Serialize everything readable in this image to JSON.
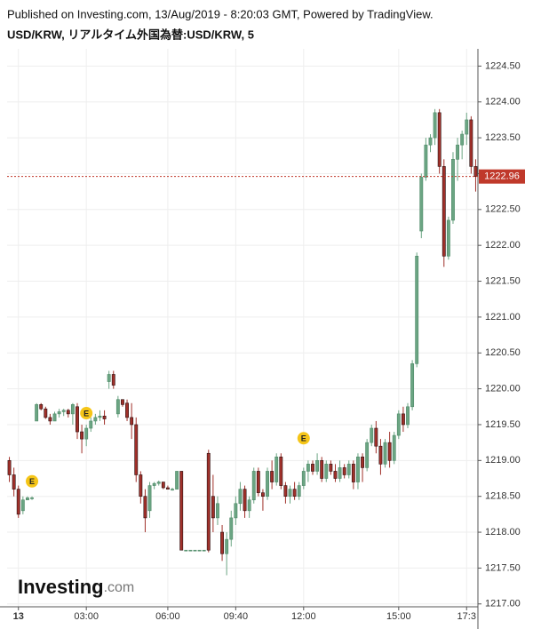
{
  "header": {
    "published": "Published on Investing.com, 13/Aug/2019 - 8:20:03 GMT, Powered by TradingView.",
    "symbol": "USD/KRW, リアルタイム外国為替:USD/KRW, 5"
  },
  "logo": {
    "name": "Investing",
    "suffix": ".com"
  },
  "chart_data": {
    "type": "candlestick",
    "up_color": "#6ba583",
    "down_color": "#a0302a",
    "grid": true,
    "categories": [
      null,
      null,
      "13",
      null,
      null,
      null,
      null,
      null,
      null,
      null,
      null,
      null,
      null,
      null,
      null,
      null,
      null,
      "03:00",
      null,
      null,
      null,
      null,
      null,
      null,
      null,
      null,
      null,
      null,
      null,
      null,
      null,
      null,
      null,
      null,
      null,
      "06:00",
      null,
      null,
      null,
      null,
      null,
      null,
      null,
      null,
      null,
      null,
      null,
      null,
      null,
      null,
      "09:40",
      null,
      null,
      null,
      null,
      null,
      null,
      null,
      null,
      null,
      null,
      null,
      null,
      null,
      null,
      "12:00",
      null,
      null,
      null,
      null,
      null,
      null,
      null,
      null,
      null,
      null,
      null,
      null,
      null,
      null,
      null,
      null,
      null,
      null,
      null,
      null,
      "15:00",
      null,
      null,
      null,
      null,
      null,
      null,
      null,
      null,
      null,
      null,
      null,
      null,
      null,
      null,
      "17:3",
      null,
      null
    ],
    "open": [
      1219.0,
      1218.8,
      1218.6,
      1218.3,
      1218.45,
      1218.48,
      1219.55,
      1219.78,
      1219.72,
      1219.6,
      1219.55,
      1219.65,
      1219.68,
      1219.7,
      1219.65,
      1219.75,
      1219.4,
      1219.3,
      1219.45,
      1219.55,
      1219.6,
      1219.62,
      1220.1,
      1220.2,
      1219.65,
      1219.85,
      1219.8,
      1219.6,
      1219.5,
      1218.8,
      1218.5,
      1218.3,
      1218.65,
      1218.68,
      1218.7,
      1218.62,
      1218.6,
      1218.6,
      1218.85,
      1217.75,
      1217.75,
      1217.75,
      1217.75,
      1217.75,
      1219.1,
      1218.5,
      1218.2,
      1218.0,
      1217.7,
      1217.9,
      1218.2,
      1218.4,
      1218.6,
      1218.3,
      1218.45,
      1218.85,
      1218.55,
      1218.5,
      1218.85,
      1218.7,
      1219.05,
      1218.65,
      1218.5,
      1218.6,
      1218.5,
      1218.65,
      1218.85,
      1218.95,
      1218.85,
      1219.0,
      1218.75,
      1218.95,
      1218.85,
      1218.75,
      1218.9,
      1218.8,
      1218.95,
      1218.7,
      1219.05,
      1218.9,
      1219.25,
      1219.45,
      1219.2,
      1218.95,
      1219.25,
      1219.0,
      1219.35,
      1219.65,
      1219.5,
      1219.75,
      1220.35,
      1222.2,
      1222.95,
      1223.4,
      1223.5,
      1223.85,
      1223.1,
      1221.85,
      1222.35,
      1223.2,
      1223.4,
      1223.55,
      1223.75,
      1223.1
    ],
    "high": [
      1219.05,
      1218.9,
      1218.65,
      1218.5,
      1218.5,
      1218.5,
      1219.8,
      1219.8,
      1219.75,
      1219.65,
      1219.68,
      1219.72,
      1219.72,
      1219.72,
      1219.8,
      1219.8,
      1219.5,
      1219.5,
      1219.6,
      1219.65,
      1219.7,
      1219.7,
      1220.25,
      1220.25,
      1219.9,
      1219.85,
      1219.85,
      1219.8,
      1219.6,
      1218.85,
      1218.6,
      1218.7,
      1218.7,
      1218.72,
      1218.7,
      1218.65,
      1218.62,
      1218.85,
      1218.85,
      1217.75,
      1217.75,
      1217.75,
      1217.75,
      1217.75,
      1219.15,
      1218.8,
      1218.5,
      1218.1,
      1218.0,
      1218.3,
      1218.5,
      1218.7,
      1218.65,
      1218.5,
      1218.9,
      1218.9,
      1218.6,
      1218.9,
      1219.0,
      1219.1,
      1219.1,
      1218.7,
      1218.65,
      1218.7,
      1218.7,
      1218.9,
      1219.0,
      1219.0,
      1219.1,
      1219.05,
      1219.0,
      1219.0,
      1218.95,
      1219.0,
      1218.95,
      1219.0,
      1219.0,
      1219.1,
      1219.1,
      1219.3,
      1219.5,
      1219.55,
      1219.3,
      1219.3,
      1219.4,
      1219.4,
      1219.7,
      1219.75,
      1219.8,
      1220.4,
      1221.9,
      1223.0,
      1223.5,
      1223.55,
      1223.9,
      1223.9,
      1223.2,
      1222.4,
      1223.3,
      1223.5,
      1223.6,
      1223.85,
      1223.8,
      1223.2
    ],
    "low": [
      1218.7,
      1218.5,
      1218.2,
      1218.25,
      1218.45,
      1218.45,
      1219.55,
      1219.7,
      1219.58,
      1219.5,
      1219.55,
      1219.6,
      1219.62,
      1219.6,
      1219.5,
      1219.3,
      1219.1,
      1219.2,
      1219.4,
      1219.5,
      1219.55,
      1219.5,
      1220.0,
      1220.0,
      1219.6,
      1219.75,
      1219.55,
      1219.3,
      1218.7,
      1218.4,
      1218.0,
      1218.2,
      1218.6,
      1218.65,
      1218.6,
      1218.6,
      1218.58,
      1218.6,
      1217.75,
      1217.75,
      1217.75,
      1217.75,
      1217.75,
      1217.75,
      1217.72,
      1218.0,
      1218.1,
      1217.6,
      1217.4,
      1217.8,
      1218.1,
      1218.3,
      1218.2,
      1218.2,
      1218.4,
      1218.5,
      1218.3,
      1218.45,
      1218.6,
      1218.65,
      1218.6,
      1218.4,
      1218.4,
      1218.45,
      1218.45,
      1218.6,
      1218.7,
      1218.8,
      1218.8,
      1218.7,
      1218.7,
      1218.8,
      1218.7,
      1218.7,
      1218.75,
      1218.75,
      1218.6,
      1218.6,
      1218.7,
      1218.85,
      1219.2,
      1219.1,
      1218.8,
      1218.9,
      1218.9,
      1218.95,
      1219.3,
      1219.4,
      1219.45,
      1219.7,
      1220.3,
      1222.1,
      1222.9,
      1223.3,
      1223.4,
      1223.0,
      1221.7,
      1221.8,
      1222.3,
      1222.9,
      1223.2,
      1223.4,
      1223.0,
      1222.75
    ],
    "close": [
      1218.8,
      1218.6,
      1218.25,
      1218.45,
      1218.48,
      1218.48,
      1219.78,
      1219.72,
      1219.6,
      1219.55,
      1219.65,
      1219.68,
      1219.7,
      1219.65,
      1219.78,
      1219.4,
      1219.3,
      1219.45,
      1219.55,
      1219.6,
      1219.62,
      1219.58,
      1220.2,
      1220.05,
      1219.85,
      1219.78,
      1219.6,
      1219.5,
      1218.8,
      1218.5,
      1218.2,
      1218.65,
      1218.68,
      1218.7,
      1218.62,
      1218.6,
      1218.6,
      1218.85,
      1217.75,
      1217.75,
      1217.75,
      1217.75,
      1217.75,
      1217.75,
      1217.75,
      1218.2,
      1218.4,
      1217.7,
      1217.9,
      1218.2,
      1218.4,
      1218.6,
      1218.3,
      1218.45,
      1218.85,
      1218.55,
      1218.5,
      1218.85,
      1218.7,
      1219.05,
      1218.65,
      1218.5,
      1218.6,
      1218.5,
      1218.65,
      1218.85,
      1218.95,
      1218.85,
      1219.0,
      1218.75,
      1218.95,
      1218.85,
      1218.75,
      1218.9,
      1218.8,
      1218.95,
      1218.7,
      1219.05,
      1218.9,
      1219.25,
      1219.45,
      1219.2,
      1218.95,
      1219.25,
      1219.0,
      1219.35,
      1219.65,
      1219.5,
      1219.75,
      1220.35,
      1221.85,
      1222.95,
      1223.4,
      1223.5,
      1223.85,
      1223.1,
      1221.85,
      1222.35,
      1223.2,
      1223.4,
      1223.55,
      1223.75,
      1223.1,
      1222.96
    ],
    "last_price": 1222.96,
    "last_price_color": "#c0392b",
    "events": [
      {
        "label": "E",
        "index": 5,
        "value": 1218.71
      },
      {
        "label": "E",
        "index": 17,
        "value": 1219.66
      },
      {
        "label": "E",
        "index": 65,
        "value": 1219.31
      }
    ],
    "ylim": [
      1216.96,
      1224.74
    ],
    "yticks": [
      {
        "value": 1217,
        "label": "1217.00"
      },
      {
        "value": 1217.5,
        "label": "1217.50"
      },
      {
        "value": 1218,
        "label": "1218.00"
      },
      {
        "value": 1218.5,
        "label": "1218.50"
      },
      {
        "value": 1219,
        "label": "1219.00"
      },
      {
        "value": 1219.5,
        "label": "1219.50"
      },
      {
        "value": 1220,
        "label": "1220.00"
      },
      {
        "value": 1220.5,
        "label": "1220.50"
      },
      {
        "value": 1221,
        "label": "1221.00"
      },
      {
        "value": 1221.5,
        "label": "1221.50"
      },
      {
        "value": 1222,
        "label": "1222.00"
      },
      {
        "value": 1222.5,
        "label": "1222.50"
      },
      {
        "value": 1223,
        "label": "1223.00"
      },
      {
        "value": 1223.5,
        "label": "1223.50"
      },
      {
        "value": 1224,
        "label": "1224.00"
      },
      {
        "value": 1224.5,
        "label": "1224.50"
      }
    ]
  }
}
